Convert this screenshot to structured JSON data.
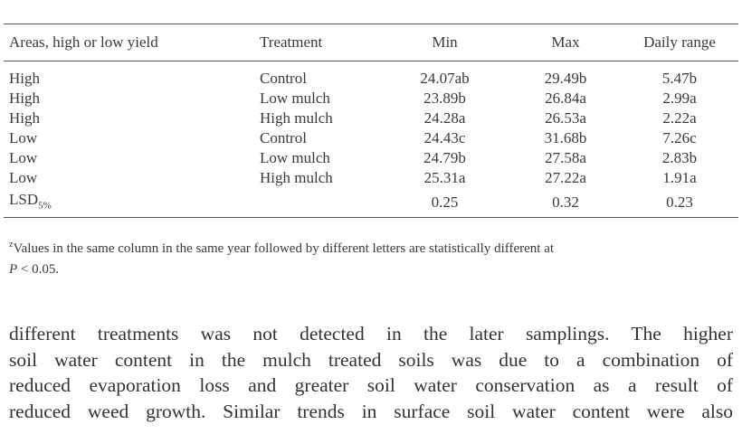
{
  "table": {
    "header": [
      "Areas, high or low yield",
      "Treatment",
      "Min",
      "Max",
      "Daily range"
    ],
    "rows": [
      [
        "High",
        "Control",
        "24.07ab",
        "29.49b",
        "5.47b"
      ],
      [
        "High",
        "Low mulch",
        "23.89b",
        "26.84a",
        "2.99a"
      ],
      [
        "High",
        "High mulch",
        "24.28a",
        "26.53a",
        "2.22a"
      ],
      [
        "Low",
        "Control",
        "24.43c",
        "31.68b",
        "7.26c"
      ],
      [
        "Low",
        "Low mulch",
        "24.79b",
        "27.58a",
        "2.83b"
      ],
      [
        "Low",
        "High mulch",
        "25.31a",
        "27.22a",
        "1.91a"
      ]
    ],
    "lsd": {
      "label": "LSD",
      "subscript": "5%",
      "values": [
        "0.25",
        "0.32",
        "0.23"
      ]
    }
  },
  "footnote": {
    "marker": "z",
    "text": "Values in the same column in the same year followed by different letters are statistically different at",
    "italic": "P",
    "rest": "< 0.05."
  },
  "paragraph": [
    "different treatments was not detected in the later samplings. The higher",
    "soil water content in the mulch treated soils was due to a combination of",
    "reduced evaporation loss and greater soil water conservation as a result of",
    "reduced weed growth. Similar trends in surface soil water content were also"
  ]
}
